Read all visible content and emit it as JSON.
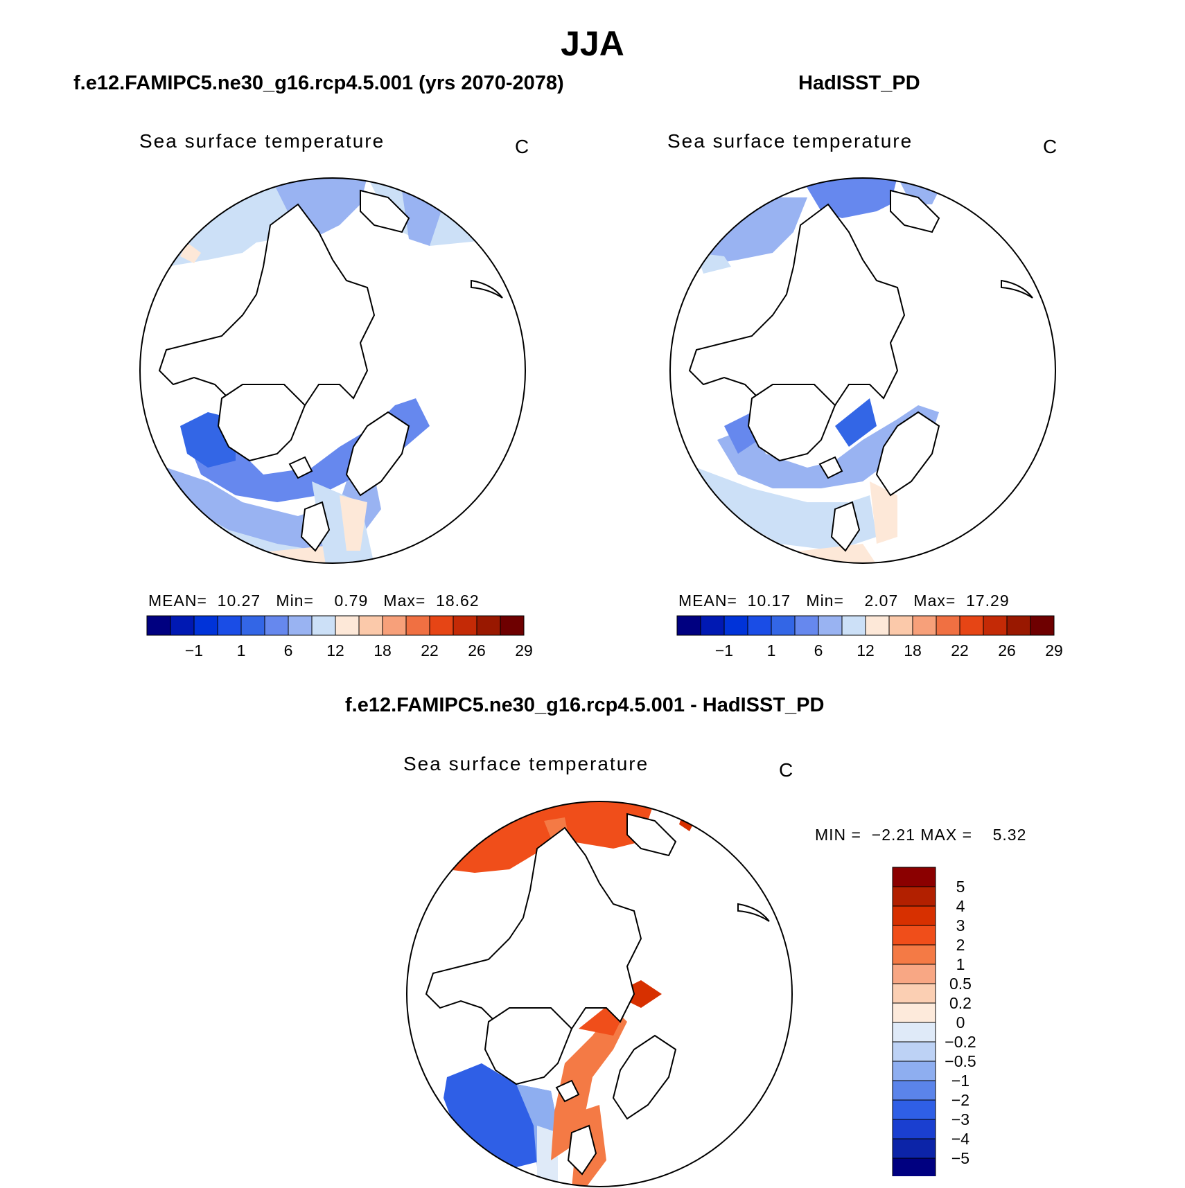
{
  "figure": {
    "title": "JJA"
  },
  "panels": [
    {
      "id": "model",
      "case_title": "f.e12.FAMIPC5.ne30_g16.rcp4.5.001 (yrs 2070-2078)",
      "variable": "Sea surface temperature",
      "units": "C",
      "stats": {
        "mean_label": "MEAN=",
        "mean": "10.27",
        "min_label": "Min=",
        "min": "0.79",
        "max_label": "Max=",
        "max": "18.62"
      },
      "colorbar": {
        "orientation": "horizontal",
        "colors": [
          "#000080",
          "#0019b3",
          "#0033d9",
          "#1a4de6",
          "#3366e6",
          "#6688ee",
          "#99b3f2",
          "#cce0f7",
          "#fde8d8",
          "#fbc9aa",
          "#f7a07a",
          "#f07042",
          "#e64515",
          "#c42a06",
          "#991800",
          "#6e0000"
        ],
        "tick_labels": [
          "−1",
          "1",
          "6",
          "12",
          "18",
          "22",
          "26",
          "29"
        ]
      },
      "map": {
        "projection": "north polar stereographic",
        "field": "sea surface temperature (model)",
        "land_and_ice": "white",
        "coastlines": "black"
      }
    },
    {
      "id": "obs",
      "case_title": "HadISST_PD",
      "variable": "Sea surface temperature",
      "units": "C",
      "stats": {
        "mean_label": "MEAN=",
        "mean": "10.17",
        "min_label": "Min=",
        "min": "2.07",
        "max_label": "Max=",
        "max": "17.29"
      },
      "colorbar": {
        "orientation": "horizontal",
        "colors": [
          "#000080",
          "#0019b3",
          "#0033d9",
          "#1a4de6",
          "#3366e6",
          "#6688ee",
          "#99b3f2",
          "#cce0f7",
          "#fde8d8",
          "#fbc9aa",
          "#f7a07a",
          "#f07042",
          "#e64515",
          "#c42a06",
          "#991800",
          "#6e0000"
        ],
        "tick_labels": [
          "−1",
          "1",
          "6",
          "12",
          "18",
          "22",
          "26",
          "29"
        ]
      },
      "map": {
        "projection": "north polar stereographic",
        "field": "sea surface temperature (observed)",
        "land_and_ice": "white",
        "coastlines": "black"
      }
    },
    {
      "id": "diff",
      "case_title": "f.e12.FAMIPC5.ne30_g16.rcp4.5.001 - HadISST_PD",
      "variable": "Sea surface temperature",
      "units": "C",
      "stats": {
        "min_label": "MIN =",
        "min": "−2.21",
        "max_label": "MAX =",
        "max": "5.32"
      },
      "colorbar": {
        "orientation": "vertical",
        "colors_top_to_bottom": [
          "#8b0000",
          "#b22000",
          "#d73000",
          "#f04e1a",
          "#f47a45",
          "#f8a784",
          "#fbcfb3",
          "#fdeadb",
          "#dfeaf8",
          "#bdd2f5",
          "#8eaef0",
          "#5b84ea",
          "#2f5fe6",
          "#1a3fd0",
          "#0c24a8",
          "#000080"
        ],
        "tick_labels": [
          "5",
          "4",
          "3",
          "2",
          "1",
          "0.5",
          "0.2",
          "0",
          "−0.2",
          "−0.5",
          "−1",
          "−2",
          "−3",
          "−4",
          "−5"
        ]
      },
      "map": {
        "projection": "north polar stereographic",
        "field": "sea surface temperature difference",
        "land_and_ice": "white",
        "coastlines": "black"
      }
    }
  ]
}
